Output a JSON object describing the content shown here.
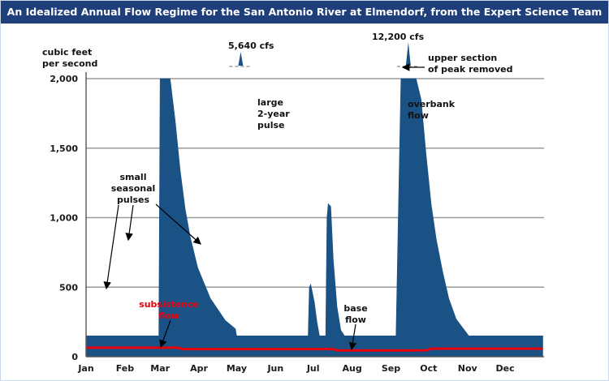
{
  "chart_data": {
    "type": "area",
    "title": "An Idealized Annual Flow Regime for the San Antonio River at Elmendorf, from the Expert Science Team",
    "ylabel": "cubic feet per second",
    "ylabel_lines": [
      "cubic feet",
      "per second"
    ],
    "xlabel": "",
    "ylim": [
      0,
      2000
    ],
    "y_scale": "linear",
    "grid": true,
    "y_ticks": [
      0,
      500,
      1000,
      1500,
      2000
    ],
    "y_tick_labels": [
      "0",
      "500",
      "1,000",
      "1,500",
      "2,000"
    ],
    "x_tick_labels": [
      "Jan",
      "Feb",
      "Mar",
      "Apr",
      "May",
      "Jun",
      "Jul",
      "Aug",
      "Sep",
      "Oct",
      "Nov",
      "Dec"
    ],
    "x_unit": "day of year",
    "colors": {
      "flow": "#1b5286",
      "subsistence": "#e8000a",
      "grid": "#9a9a9a",
      "title_bg": "#1f3f7a"
    },
    "series": [
      {
        "role": "flow",
        "x": [
          1,
          57,
          59,
          60,
          62,
          65,
          68,
          72,
          76,
          80,
          84,
          90,
          100,
          112,
          120,
          121,
          123,
          125,
          127,
          130,
          134,
          140,
          148,
          158,
          166,
          176,
          178,
          179,
          180,
          181,
          183,
          185,
          187,
          189,
          190,
          191,
          192,
          193,
          194,
          196,
          198,
          201,
          204,
          207,
          211,
          216,
          222,
          230,
          236,
          242,
          248,
          252,
          256,
          260,
          264,
          268,
          272,
          276,
          280,
          285,
          290,
          296,
          306,
          312,
          318,
          323,
          330,
          336,
          338,
          340,
          341,
          342,
          344,
          346,
          350,
          356,
          365
        ],
        "y": [
          150,
          150,
          150,
          2000,
          2000,
          2000,
          2000,
          1700,
          1340,
          1060,
          860,
          640,
          420,
          260,
          200,
          150,
          150,
          150,
          150,
          150,
          150,
          150,
          150,
          150,
          150,
          150,
          150,
          500,
          520,
          480,
          390,
          250,
          150,
          150,
          150,
          150,
          150,
          1000,
          1100,
          1080,
          700,
          360,
          190,
          150,
          150,
          150,
          150,
          150,
          150,
          150,
          150,
          2000,
          2000,
          2000,
          2000,
          1850,
          1450,
          1100,
          850,
          620,
          420,
          270,
          150,
          150,
          150,
          150,
          150,
          150,
          150,
          150,
          150,
          150,
          150,
          150,
          150,
          150,
          150
        ],
        "peaks_shown": [
          {
            "x": 121,
            "y": 5640,
            "label": "5,640 cfs"
          },
          {
            "x": 252,
            "y": 12200,
            "label": "12,200 cfs"
          }
        ]
      },
      {
        "role": "subsistence",
        "x": [
          1,
          74,
          78,
          198,
          201,
          272,
          276,
          365
        ],
        "y": [
          65,
          65,
          55,
          55,
          45,
          45,
          58,
          58
        ]
      }
    ],
    "annotations": {
      "peak_1": "5,640 cfs",
      "peak_2": "12,200 cfs",
      "removed_lines": [
        "upper section",
        "of peak removed"
      ],
      "large_pulse_lines": [
        "large",
        "2-year",
        "pulse"
      ],
      "overbank_lines": [
        "overbank",
        "flow"
      ],
      "small_pulses_lines": [
        "small",
        "seasonal",
        "pulses"
      ],
      "subsistence_lines": [
        "subsistence",
        "flow"
      ],
      "base_lines": [
        "base",
        "flow"
      ]
    }
  }
}
